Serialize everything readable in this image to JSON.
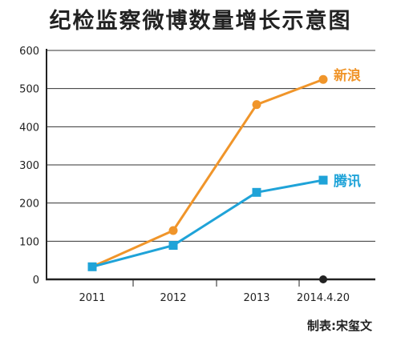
{
  "chart_data": {
    "type": "line",
    "title": "纪检监察微博数量增长示意图",
    "categories": [
      "2011",
      "2012",
      "2013",
      "2014.4.20"
    ],
    "ylim": [
      0,
      600
    ],
    "yticks": [
      0,
      100,
      200,
      300,
      400,
      500,
      600
    ],
    "grid": true,
    "xlabel": "",
    "ylabel": "",
    "series": [
      {
        "name": "新浪",
        "color": "#f0952a",
        "marker": "circle",
        "values": [
          33,
          128,
          458,
          524
        ]
      },
      {
        "name": "腾讯",
        "color": "#1fa3d8",
        "marker": "square",
        "values": [
          33,
          89,
          228,
          260
        ]
      }
    ],
    "credit": "制表:宋玺文"
  }
}
